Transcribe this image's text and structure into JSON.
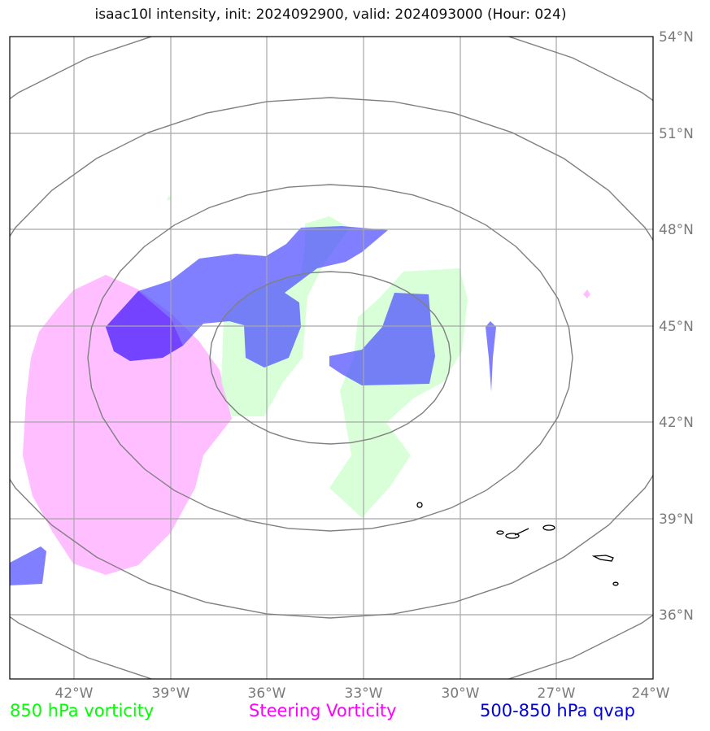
{
  "title": "isaac10l intensity, init: 2024092900, valid: 2024093000 (Hour: 024)",
  "map": {
    "lon_range": [
      -44,
      -24
    ],
    "lat_range": [
      34,
      54
    ],
    "lon_ticks": [
      {
        "value": -42,
        "label": "42°W"
      },
      {
        "value": -39,
        "label": "39°W"
      },
      {
        "value": -36,
        "label": "36°W"
      },
      {
        "value": -33,
        "label": "33°W"
      },
      {
        "value": -30,
        "label": "30°W"
      },
      {
        "value": -27,
        "label": "27°W"
      },
      {
        "value": -24,
        "label": "24°W"
      }
    ],
    "lat_ticks": [
      {
        "value": 54,
        "label": "54°N"
      },
      {
        "value": 51,
        "label": "51°N"
      },
      {
        "value": 48,
        "label": "48°N"
      },
      {
        "value": 45,
        "label": "45°N"
      },
      {
        "value": 42,
        "label": "42°N"
      },
      {
        "value": 39,
        "label": "39°N"
      },
      {
        "value": 36,
        "label": "36°N"
      }
    ],
    "gridlines": true,
    "range_rings_center": {
      "lon": -34.0,
      "lat": 43.9
    },
    "colors": {
      "vorticity_850": "#ccffcc",
      "steering_vorticity": "#ffb3ff",
      "qvap": "#5a5aff",
      "grid": "#a6a6a6",
      "rings": "#808080",
      "coastline": "#000000"
    }
  },
  "legend": {
    "vort850": {
      "label": "850 hPa vorticity",
      "color": "#00ff00"
    },
    "steering": {
      "label": "Steering Vorticity",
      "color": "#ff00ff"
    },
    "qvap": {
      "label": "500-850 hPa qvap",
      "color": "#0000dd"
    }
  }
}
